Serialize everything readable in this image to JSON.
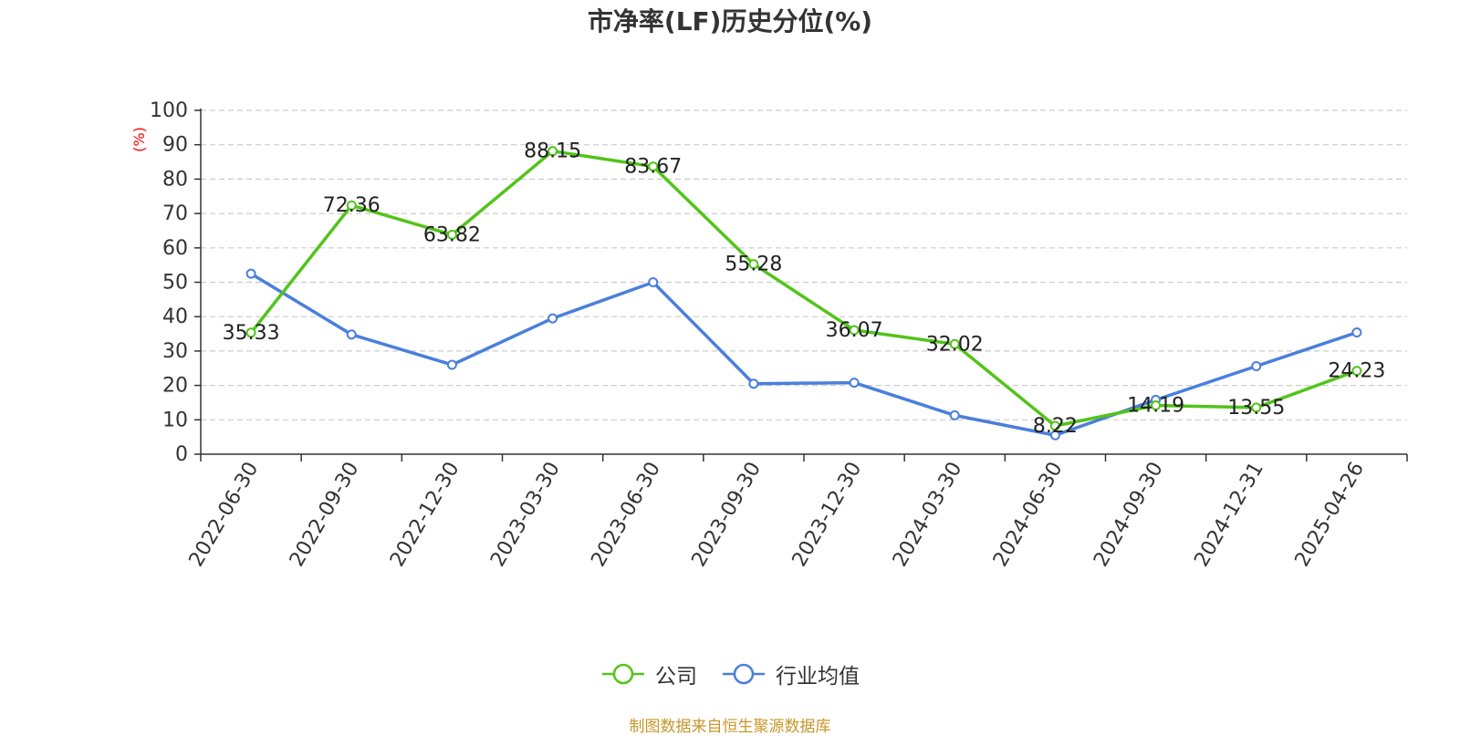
{
  "chart_data": {
    "type": "line",
    "title": "市净率(LF)历史分位(%)",
    "ylabel": "(%)",
    "ylim": [
      0,
      100
    ],
    "yticks": [
      0,
      10,
      20,
      30,
      40,
      50,
      60,
      70,
      80,
      90,
      100
    ],
    "grid": true,
    "legend_position": "bottom",
    "categories": [
      "2022-06-30",
      "2022-09-30",
      "2022-12-30",
      "2023-03-30",
      "2023-06-30",
      "2023-09-30",
      "2023-12-30",
      "2024-03-30",
      "2024-06-30",
      "2024-09-30",
      "2024-12-31",
      "2025-04-26"
    ],
    "series": [
      {
        "name": "公司",
        "color": "#52c41a",
        "values": [
          35.33,
          72.36,
          63.82,
          88.15,
          83.67,
          55.28,
          36.07,
          32.02,
          8.22,
          14.19,
          13.55,
          24.23
        ],
        "labels": [
          "35.33",
          "72.36",
          "63.82",
          "88.15",
          "83.67",
          "55.28",
          "36.07",
          "32.02",
          "8.22",
          "14.19",
          "13.55",
          "24.23"
        ]
      },
      {
        "name": "行业均值",
        "color": "#4a7fdc",
        "values": [
          52.5,
          34.8,
          26.0,
          39.5,
          50.0,
          20.5,
          20.8,
          11.3,
          5.5,
          15.8,
          25.6,
          35.4
        ]
      }
    ],
    "source": "制图数据来自恒生聚源数据库",
    "source_color": "#c8962a",
    "ylabel_color": "#ff0000"
  }
}
